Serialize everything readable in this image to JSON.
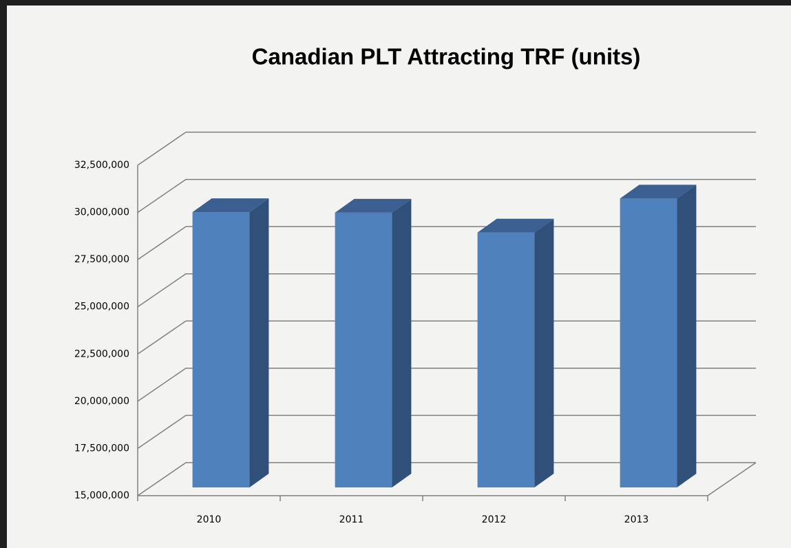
{
  "chart_data": {
    "type": "bar3d",
    "title": "Canadian PLT Attracting TRF (units)",
    "categories": [
      "2010",
      "2011",
      "2012",
      "2013"
    ],
    "values": [
      29580000,
      29550000,
      28500000,
      30300000
    ],
    "color": "#4f81bd",
    "ylim": [
      15000000,
      32500000
    ],
    "yticks": [
      {
        "value": 15000000,
        "label": "15,000,000"
      },
      {
        "value": 17500000,
        "label": "17,500,000"
      },
      {
        "value": 20000000,
        "label": "20,000,000"
      },
      {
        "value": 22500000,
        "label": "22,500,000"
      },
      {
        "value": 25000000,
        "label": "25,000,000"
      },
      {
        "value": 27500000,
        "label": "27,500,000"
      },
      {
        "value": 30000000,
        "label": "30,000,000"
      },
      {
        "value": 32500000,
        "label": "32,500,000"
      }
    ],
    "grid": true
  }
}
